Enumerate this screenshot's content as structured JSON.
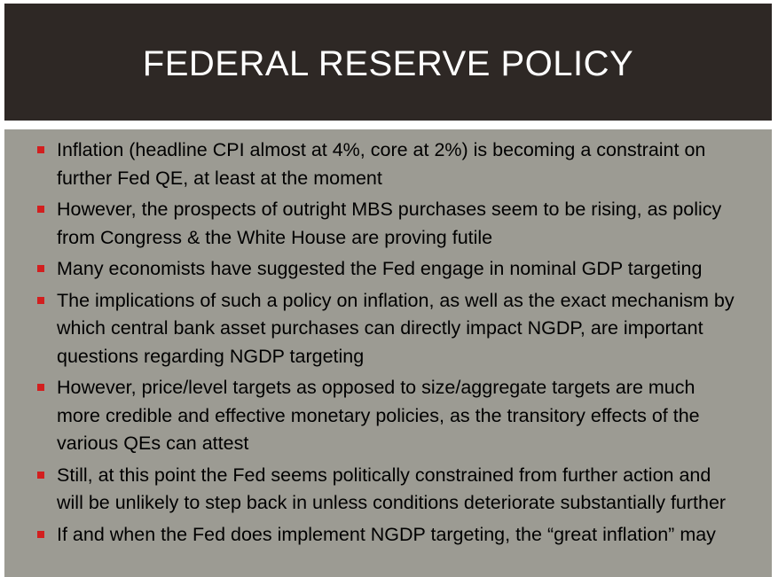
{
  "slide": {
    "title": "FEDERAL RESERVE POLICY",
    "bullets": [
      "Inflation (headline CPI almost at 4%, core at 2%) is becoming a constraint on further Fed QE, at least at the moment",
      "However, the prospects of outright MBS purchases seem to be rising, as policy from Congress & the White House are proving futile",
      "Many economists have suggested the Fed engage in nominal GDP targeting",
      "The implications of such a policy on inflation, as well as the exact mechanism by which central bank asset purchases can directly impact NGDP, are important questions regarding NGDP targeting",
      "However, price/level targets as opposed to size/aggregate targets are much more credible and effective monetary policies, as the transitory effects of the various QEs can attest",
      "Still, at this point the Fed seems politically constrained from further action and will be unlikely to step back in unless conditions deteriorate substantially further",
      "If and when the Fed does implement NGDP targeting, the “great inflation” may"
    ]
  },
  "colors": {
    "title_bar": "#2e2825",
    "body_panel": "#9c9b93",
    "bullet_marker": "#d21f1f",
    "title_text": "#ffffff"
  }
}
